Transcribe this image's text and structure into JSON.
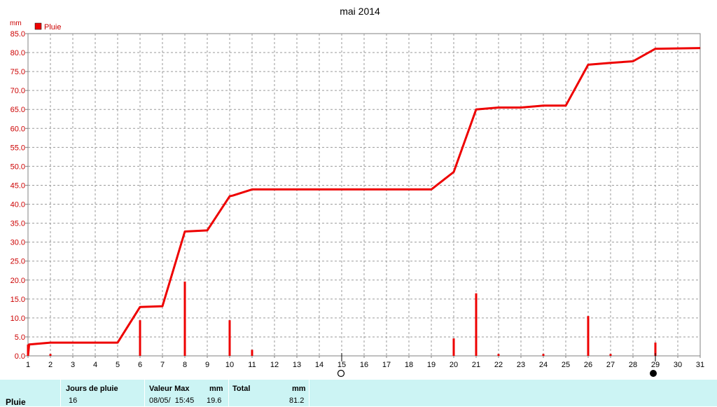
{
  "chart_data": {
    "type": "line",
    "title": "mai 2014",
    "yunit": "mm",
    "legend": {
      "label": "Pluie",
      "color": "#ee0000",
      "placement": "top-left"
    },
    "ylim": [
      0,
      85
    ],
    "yticks": [
      "0.0",
      "5.0",
      "10.0",
      "15.0",
      "20.0",
      "25.0",
      "30.0",
      "35.0",
      "40.0",
      "45.0",
      "50.0",
      "55.0",
      "60.0",
      "65.0",
      "70.0",
      "75.0",
      "80.0",
      "85.0"
    ],
    "xlim": [
      1,
      31
    ],
    "xticks": [
      "1",
      "2",
      "3",
      "4",
      "5",
      "6",
      "7",
      "8",
      "9",
      "10",
      "11",
      "12",
      "13",
      "14",
      "15",
      "16",
      "17",
      "18",
      "19",
      "20",
      "21",
      "22",
      "23",
      "24",
      "25",
      "26",
      "27",
      "28",
      "29",
      "30",
      "31"
    ],
    "grid": true,
    "series": [
      {
        "kind": "cumulative-line",
        "x": [
          1,
          1.05,
          2,
          5,
          6,
          7,
          8,
          9,
          10,
          10.15,
          11,
          19,
          20,
          21,
          22,
          23,
          24,
          25,
          26,
          27,
          28,
          29,
          31
        ],
        "values": [
          0,
          3.0,
          3.5,
          3.5,
          12.9,
          13.1,
          32.8,
          33.1,
          42.1,
          42.3,
          43.9,
          43.9,
          48.5,
          65.0,
          65.5,
          65.5,
          66.0,
          66.0,
          76.8,
          77.3,
          77.7,
          81.0,
          81.2
        ]
      },
      {
        "kind": "daily-bars",
        "x": [
          1,
          2,
          6,
          8,
          10,
          11,
          20,
          21,
          22,
          24,
          26,
          27,
          29
        ],
        "values": [
          3.0,
          0.5,
          9.4,
          19.6,
          9.4,
          1.6,
          4.6,
          16.5,
          0.5,
          0.5,
          10.5,
          0.5,
          3.5
        ]
      }
    ],
    "moon_phases": [
      {
        "day": 15,
        "phase": "full-moon"
      },
      {
        "day": 29,
        "phase": "new-moon"
      }
    ]
  },
  "summary": {
    "row_label": "Pluie",
    "rain_days_header": "Jours de pluie",
    "rain_days_value": "16",
    "max_header": "Valeur Max",
    "max_unit": "mm",
    "max_datetime": "08/05/  15:45",
    "max_value": "19.6",
    "total_header": "Total",
    "total_unit": "mm",
    "total_value": "81.2"
  }
}
